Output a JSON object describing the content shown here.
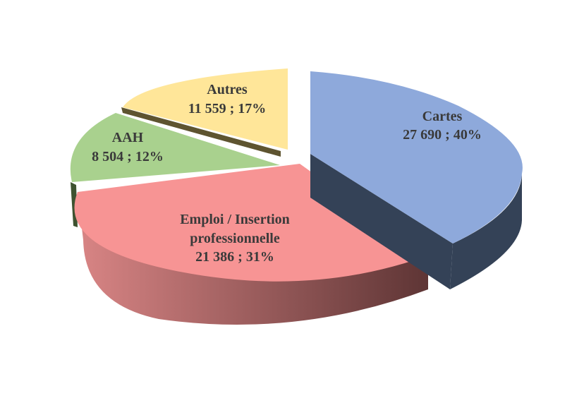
{
  "chart_data": {
    "type": "pie",
    "style": "3d-exploded",
    "title": "",
    "slices": [
      {
        "name": "Cartes",
        "value": 27690,
        "percent": 40,
        "value_label": "27 690 ; 40%",
        "top_color": "#8EA9DB",
        "side_color": "#344257"
      },
      {
        "name": "Emploi / Insertion professionnelle",
        "name_lines": [
          "Emploi / Insertion",
          "professionnelle"
        ],
        "value": 21386,
        "percent": 31,
        "value_label": "21 386 ; 31%",
        "top_color": "#F79494",
        "side_color_light": "#D98585",
        "side_color_dark": "#5E3535"
      },
      {
        "name": "AAH",
        "value": 8504,
        "percent": 12,
        "value_label": "8 504 ; 12%",
        "top_color": "#A9D18E",
        "side_color": "#3E5230"
      },
      {
        "name": "Autres",
        "value": 11559,
        "percent": 17,
        "value_label": "11 559 ; 17%",
        "top_color": "#FFE699",
        "side_color": "#5E5430"
      }
    ]
  }
}
